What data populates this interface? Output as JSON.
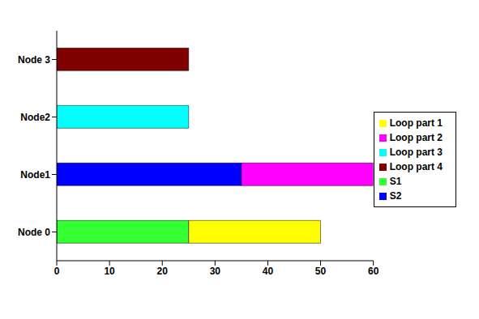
{
  "chart_data": {
    "type": "bar",
    "orientation": "horizontal",
    "stacked": true,
    "legend": "right",
    "grid": false,
    "categories": [
      "Node 0",
      "Node1",
      "Node2",
      "Node 3"
    ],
    "series": [
      {
        "name": "S1",
        "color": "#33ff33",
        "values": [
          25,
          0,
          0,
          0
        ]
      },
      {
        "name": "S2",
        "color": "#0000ff",
        "values": [
          0,
          35,
          0,
          0
        ]
      },
      {
        "name": "Loop part 1",
        "color": "#ffff00",
        "values": [
          25,
          0,
          0,
          0
        ]
      },
      {
        "name": "Loop part 2",
        "color": "#ff00ff",
        "values": [
          0,
          25,
          0,
          0
        ]
      },
      {
        "name": "Loop part 3",
        "color": "#00ffff",
        "values": [
          0,
          0,
          25,
          0
        ]
      },
      {
        "name": "Loop part 4",
        "color": "#800000",
        "values": [
          0,
          0,
          0,
          25
        ]
      }
    ],
    "xlim": [
      0,
      60
    ],
    "xticks": [
      0,
      10,
      20,
      30,
      40,
      50,
      60
    ]
  }
}
